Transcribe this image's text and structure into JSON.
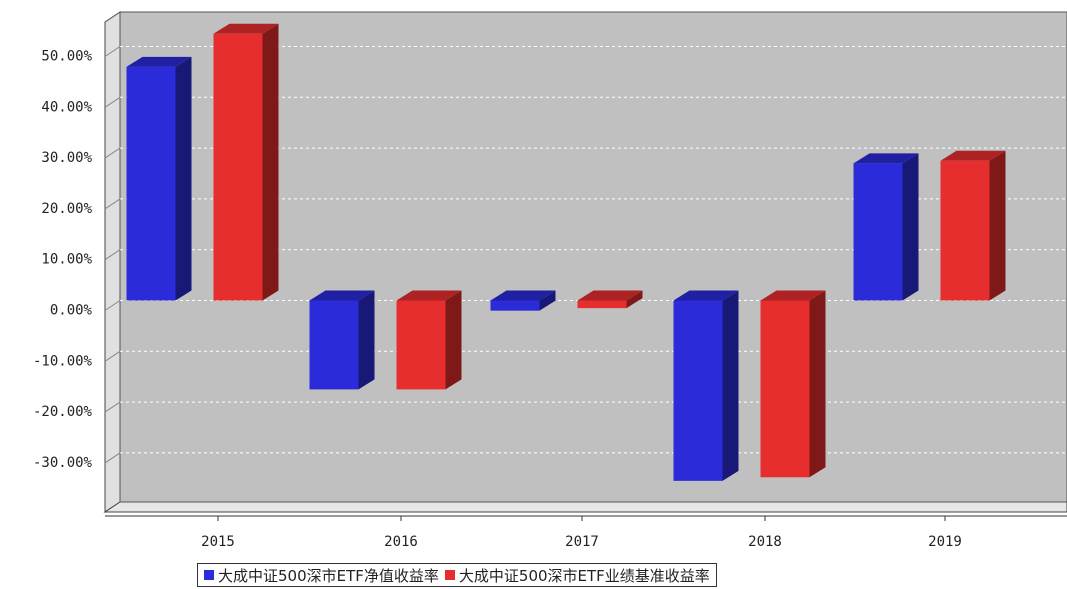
{
  "chart_data": {
    "type": "bar",
    "categories": [
      "2015",
      "2016",
      "2017",
      "2018",
      "2019"
    ],
    "series": [
      {
        "name": "大成中证500深市ETF净值收益率",
        "color": "#2b2bd9",
        "values": [
          46.0,
          -17.5,
          -2.0,
          -35.5,
          27.0
        ]
      },
      {
        "name": "大成中证500深市ETF业绩基准收益率",
        "color": "#e62e2e",
        "values": [
          52.5,
          -17.5,
          -1.5,
          -34.8,
          27.5
        ]
      }
    ],
    "y_ticks": [
      "50.00%",
      "40.00%",
      "30.00%",
      "20.00%",
      "10.00%",
      "0.00%",
      "-10.00%",
      "-20.00%",
      "-30.00%"
    ],
    "ylim": [
      -40,
      60
    ],
    "title": "",
    "xlabel": "",
    "ylabel": "",
    "grid": true,
    "legend_position": "bottom",
    "background_color": "#c0c0c0"
  }
}
